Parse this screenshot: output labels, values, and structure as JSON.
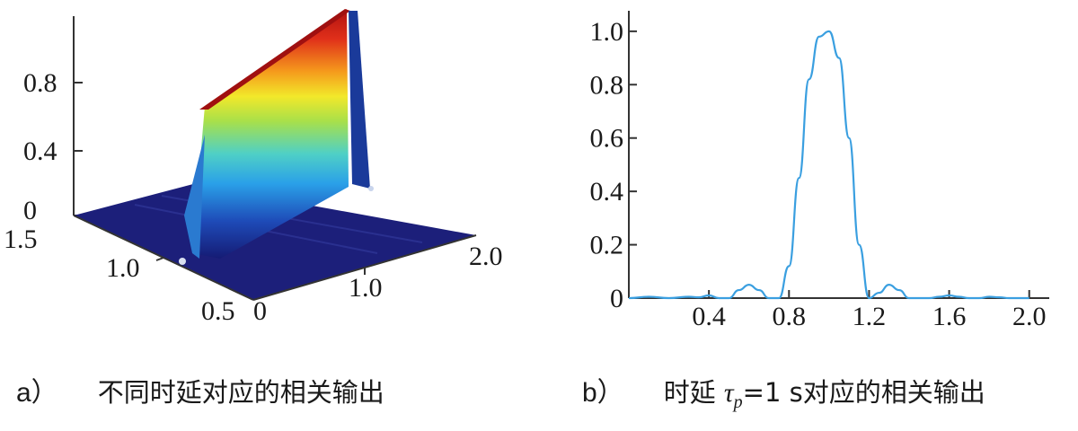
{
  "panel_a": {
    "tag": "a）",
    "caption": "不同时延对应的相关输出",
    "z_ticks": [
      "0",
      "0.4",
      "0.8"
    ],
    "y_ticks": [
      "1.5",
      "1.0",
      "0.5"
    ],
    "x_ticks": [
      "0",
      "1.0",
      "2.0"
    ]
  },
  "panel_b": {
    "tag": "b）",
    "caption_prefix": "时延 ",
    "tau_symbol": "τ",
    "tau_sub": "p",
    "caption_suffix": "=1 s对应的相关输出"
  },
  "colors": {
    "line": "#3a9fe0",
    "axis": "#333333",
    "surface_base": "#1c1f7a",
    "colormap": [
      "#151b74",
      "#1e4bb8",
      "#2aa0e8",
      "#4fd0c6",
      "#a8e04a",
      "#f2e82a",
      "#f59a1c",
      "#e0301a",
      "#b01010"
    ]
  },
  "chart_data": [
    {
      "type": "surface",
      "description_axes": {
        "x_range": [
          0,
          2.0
        ],
        "y_range": [
          0.5,
          1.5
        ],
        "z_range": [
          0,
          1.0
        ]
      },
      "ridge": {
        "z_peak": 1.0,
        "note_width": 0.2
      }
    },
    {
      "type": "line",
      "x_ticks": [
        "0.4",
        "0.8",
        "1.2",
        "1.6",
        "2.0"
      ],
      "y_ticks": [
        "0",
        "0.2",
        "0.4",
        "0.6",
        "0.8",
        "1.0"
      ],
      "xlim": [
        0,
        2.1
      ],
      "ylim": [
        0,
        1.05
      ],
      "series": [
        {
          "x": [
            0.0,
            0.1,
            0.2,
            0.3,
            0.35,
            0.4,
            0.45,
            0.5,
            0.55,
            0.6,
            0.65,
            0.7,
            0.75,
            0.8,
            0.85,
            0.9,
            0.95,
            1.0,
            1.05,
            1.1,
            1.15,
            1.2,
            1.25,
            1.3,
            1.35,
            1.4,
            1.45,
            1.5,
            1.55,
            1.6,
            1.65,
            1.7,
            1.75,
            1.8,
            1.85,
            1.9,
            1.95,
            2.0
          ],
          "y": [
            0.0,
            0.005,
            0.0,
            0.005,
            0.003,
            0.01,
            0.0,
            0.0,
            0.03,
            0.05,
            0.03,
            0.0,
            0.0,
            0.12,
            0.45,
            0.82,
            0.98,
            1.0,
            0.9,
            0.6,
            0.2,
            0.0,
            0.02,
            0.05,
            0.03,
            0.0,
            0.0,
            0.0,
            0.005,
            0.01,
            0.005,
            0.0,
            0.0,
            0.005,
            0.003,
            0.0,
            0.0,
            0.0
          ]
        }
      ]
    }
  ]
}
